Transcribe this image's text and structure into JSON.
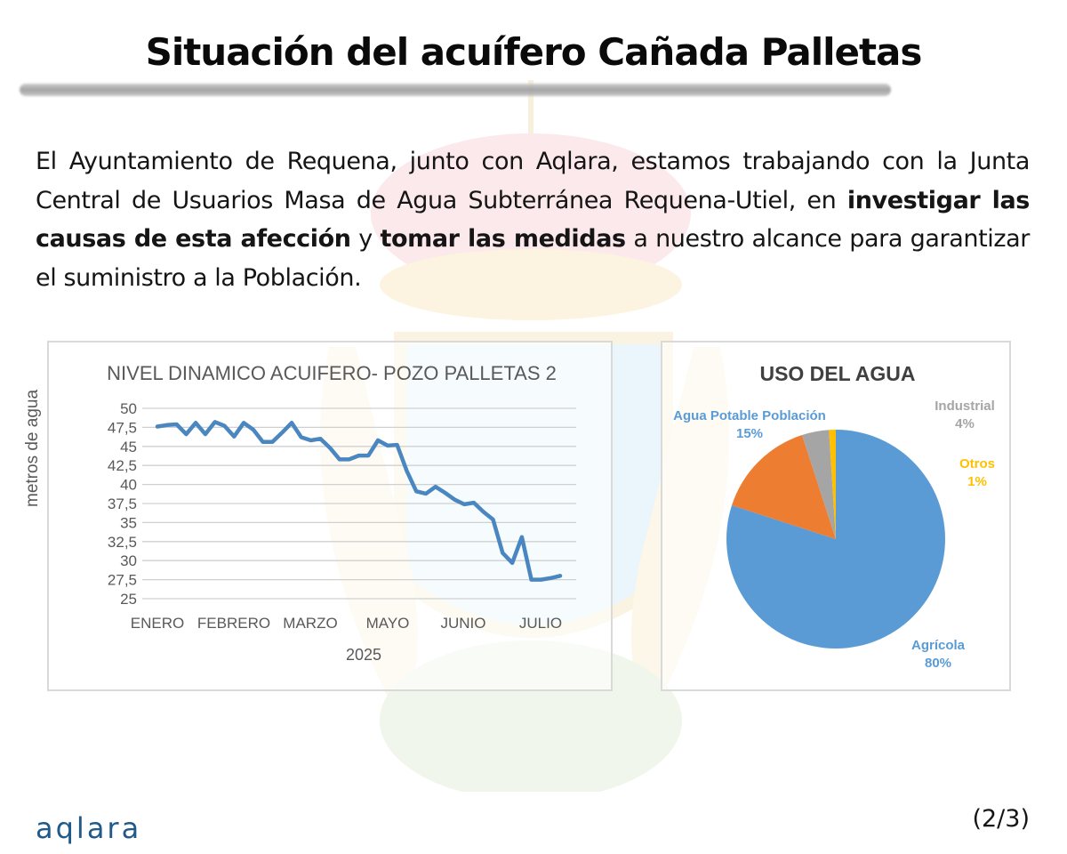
{
  "header": {
    "title": "Situación del acuífero Cañada Palletas"
  },
  "intro": {
    "part1": "El Ayuntamiento de Requena, junto con Aqlara, estamos trabajando con la Junta Central de Usuarios Masa de Agua Subterránea Requena-Utiel, en ",
    "bold1": "investigar las causas de esta afección",
    "part2": " y ",
    "bold2": "tomar las medidas",
    "part3": " a nuestro alcance para garantizar el suministro a la Población."
  },
  "footer": {
    "logo": "aqlara",
    "page_indicator": "(2/3)"
  },
  "colors": {
    "line": "#4a86c0",
    "agricola": "#5b9bd5",
    "potable": "#ed7d31",
    "industrial": "#a5a5a5",
    "otros": "#ffc000",
    "logo": "#1f5a8a"
  },
  "chart_data": [
    {
      "type": "line",
      "title": "NIVEL DINAMICO ACUIFERO- POZO PALLETAS 2",
      "xlabel": "2025",
      "ylabel": "metros de agua",
      "ylim": [
        25,
        50
      ],
      "yticks": [
        "50",
        "47,5",
        "45",
        "42,5",
        "40",
        "37,5",
        "35",
        "32,5",
        "30",
        "27,5",
        "25"
      ],
      "xtick_labels": [
        "ENERO",
        "FEBRERO",
        "MARZO",
        "MAYO",
        "JUNIO",
        "JULIO"
      ],
      "grid": true,
      "legend": false,
      "series": [
        {
          "name": "Nivel dinámico",
          "values": [
            47.6,
            47.8,
            47.9,
            46.6,
            48.1,
            46.6,
            48.2,
            47.7,
            46.3,
            48.1,
            47.2,
            45.6,
            45.6,
            46.8,
            48.1,
            46.2,
            45.8,
            46.0,
            44.8,
            43.3,
            43.3,
            43.8,
            43.8,
            45.8,
            45.1,
            45.2,
            41.8,
            39.1,
            38.8,
            39.7,
            38.9,
            38.0,
            37.4,
            37.6,
            36.4,
            35.4,
            31.0,
            29.7,
            33.1,
            27.5,
            27.5,
            27.7,
            28.0
          ]
        }
      ]
    },
    {
      "type": "pie",
      "title": "USO DEL AGUA",
      "categories": [
        "Agrícola",
        "Agua Potable Población",
        "Industrial",
        "Otros"
      ],
      "values": [
        80,
        15,
        4,
        1
      ],
      "labels": [
        "80%",
        "15%",
        "4%",
        "1%"
      ],
      "legend": false
    }
  ]
}
